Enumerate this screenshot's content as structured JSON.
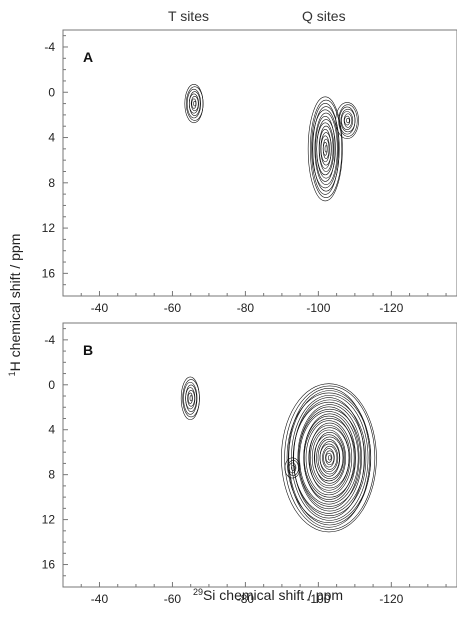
{
  "header": {
    "t_sites": "T sites",
    "q_sites": "Q sites"
  },
  "axes": {
    "xlabel_sup": "29",
    "xlabel_main": "Si chemical shift / ppm",
    "ylabel_sup": "1",
    "ylabel_main": "H chemical shift / ppm"
  },
  "chart_data": [
    {
      "type": "contour",
      "panel_label": "A",
      "xlim": [
        -30,
        -138
      ],
      "ylim": [
        -5.5,
        18
      ],
      "x_ticks": [
        -40,
        -60,
        -80,
        -100,
        -120
      ],
      "y_ticks": [
        -4,
        0,
        4,
        8,
        12,
        16
      ],
      "peaks": [
        {
          "site": "T",
          "x_center": -66,
          "y_center": 1.0,
          "x_halfwidth": 2.5,
          "y_halfwidth": 1.7,
          "levels": 8
        },
        {
          "site": "Q",
          "x_center": -102,
          "y_center": 5.0,
          "x_halfwidth": 4.5,
          "y_halfwidth": 4.6,
          "levels": 16
        },
        {
          "site": "Q",
          "x_center": -108,
          "y_center": 2.5,
          "x_halfwidth": 3.0,
          "y_halfwidth": 1.6,
          "levels": 8
        }
      ]
    },
    {
      "type": "contour",
      "panel_label": "B",
      "xlim": [
        -30,
        -138
      ],
      "ylim": [
        -5.5,
        18
      ],
      "x_ticks": [
        -40,
        -60,
        -80,
        -100,
        -120
      ],
      "y_ticks": [
        -4,
        0,
        4,
        8,
        12,
        16
      ],
      "peaks": [
        {
          "site": "T",
          "x_center": -65,
          "y_center": 1.2,
          "x_halfwidth": 2.5,
          "y_halfwidth": 1.9,
          "levels": 8
        },
        {
          "site": "Q",
          "x_center": -103,
          "y_center": 6.5,
          "x_halfwidth": 12.5,
          "y_halfwidth": 6.6,
          "levels": 32
        },
        {
          "site": "Q",
          "x_center": -93,
          "y_center": 7.4,
          "x_halfwidth": 2.0,
          "y_halfwidth": 0.9,
          "levels": 4
        }
      ]
    }
  ]
}
